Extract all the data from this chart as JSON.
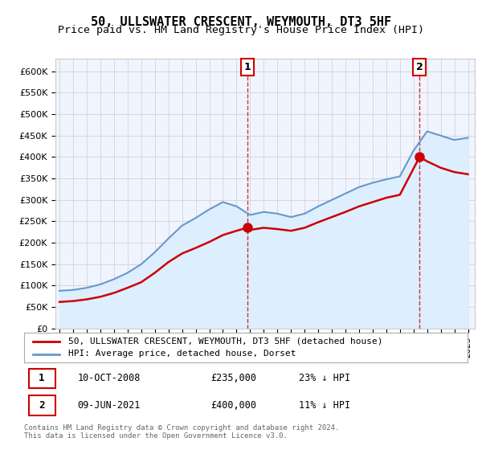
{
  "title": "50, ULLSWATER CRESCENT, WEYMOUTH, DT3 5HF",
  "subtitle": "Price paid vs. HM Land Registry's House Price Index (HPI)",
  "ylabel_ticks": [
    "£0",
    "£50K",
    "£100K",
    "£150K",
    "£200K",
    "£250K",
    "£300K",
    "£350K",
    "£400K",
    "£450K",
    "£500K",
    "£550K",
    "£600K"
  ],
  "ylim": [
    0,
    620000
  ],
  "xlim_start": 1995.0,
  "xlim_end": 2025.5,
  "point1_x": 2008.78,
  "point1_y": 235000,
  "point1_label": "1",
  "point2_x": 2021.44,
  "point2_y": 400000,
  "point2_label": "2",
  "red_line_color": "#cc0000",
  "blue_line_color": "#6699cc",
  "blue_fill_color": "#ddeeff",
  "background_color": "#f0f4ff",
  "grid_color": "#cccccc",
  "legend_entries": [
    "50, ULLSWATER CRESCENT, WEYMOUTH, DT3 5HF (detached house)",
    "HPI: Average price, detached house, Dorset"
  ],
  "annotation1": "1    10-OCT-2008    £235,000    23% ↓ HPI",
  "annotation2": "2    09-JUN-2021    £400,000    11% ↓ HPI",
  "footer": "Contains HM Land Registry data © Crown copyright and database right 2024.\nThis data is licensed under the Open Government Licence v3.0.",
  "title_fontsize": 11,
  "subtitle_fontsize": 9.5
}
